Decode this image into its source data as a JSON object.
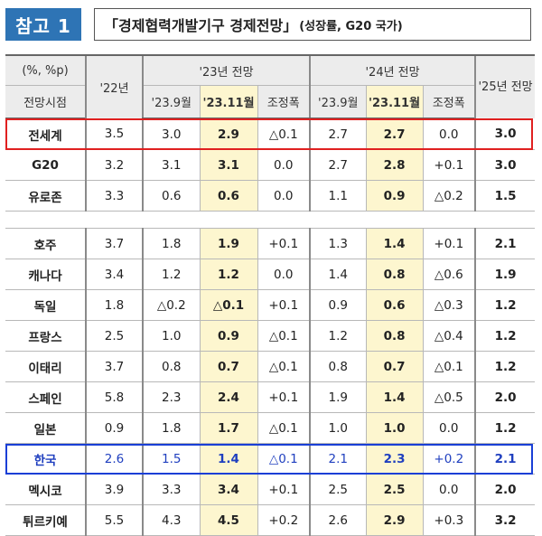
{
  "header": {
    "ref_label": "참고 1",
    "title": "「경제협력개발기구 경제전망」",
    "subtitle": "(성장률, G20 국가)"
  },
  "table": {
    "unit_label": "(%, %p)",
    "outlook_label": "전망시점",
    "col_22": "'22년",
    "group_23": "'23년 전망",
    "group_24": "'24년 전망",
    "col_25": "'25년 전망",
    "sub_sep": "'23.9월",
    "sub_nov": "'23.11월",
    "sub_adj": "조정폭",
    "rows": [
      {
        "country": "전세계",
        "y22": "3.5",
        "y23_sep": "3.0",
        "y23_nov": "2.9",
        "y23_adj": "△0.1",
        "y24_sep": "2.7",
        "y24_nov": "2.7",
        "y24_adj": "0.0",
        "y25": "3.0"
      },
      {
        "country": "G20",
        "y22": "3.2",
        "y23_sep": "3.1",
        "y23_nov": "3.1",
        "y23_adj": "0.0",
        "y24_sep": "2.7",
        "y24_nov": "2.8",
        "y24_adj": "+0.1",
        "y25": "3.0"
      },
      {
        "country": "유로존",
        "y22": "3.3",
        "y23_sep": "0.6",
        "y23_nov": "0.6",
        "y23_adj": "0.0",
        "y24_sep": "1.1",
        "y24_nov": "0.9",
        "y24_adj": "△0.2",
        "y25": "1.5"
      },
      {
        "country": "호주",
        "y22": "3.7",
        "y23_sep": "1.8",
        "y23_nov": "1.9",
        "y23_adj": "+0.1",
        "y24_sep": "1.3",
        "y24_nov": "1.4",
        "y24_adj": "+0.1",
        "y25": "2.1"
      },
      {
        "country": "캐나다",
        "y22": "3.4",
        "y23_sep": "1.2",
        "y23_nov": "1.2",
        "y23_adj": "0.0",
        "y24_sep": "1.4",
        "y24_nov": "0.8",
        "y24_adj": "△0.6",
        "y25": "1.9"
      },
      {
        "country": "독일",
        "y22": "1.8",
        "y23_sep": "△0.2",
        "y23_nov": "△0.1",
        "y23_adj": "+0.1",
        "y24_sep": "0.9",
        "y24_nov": "0.6",
        "y24_adj": "△0.3",
        "y25": "1.2"
      },
      {
        "country": "프랑스",
        "y22": "2.5",
        "y23_sep": "1.0",
        "y23_nov": "0.9",
        "y23_adj": "△0.1",
        "y24_sep": "1.2",
        "y24_nov": "0.8",
        "y24_adj": "△0.4",
        "y25": "1.2"
      },
      {
        "country": "이태리",
        "y22": "3.7",
        "y23_sep": "0.8",
        "y23_nov": "0.7",
        "y23_adj": "△0.1",
        "y24_sep": "0.8",
        "y24_nov": "0.7",
        "y24_adj": "△0.1",
        "y25": "1.2"
      },
      {
        "country": "스페인",
        "y22": "5.8",
        "y23_sep": "2.3",
        "y23_nov": "2.4",
        "y23_adj": "+0.1",
        "y24_sep": "1.9",
        "y24_nov": "1.4",
        "y24_adj": "△0.5",
        "y25": "2.0"
      },
      {
        "country": "일본",
        "y22": "0.9",
        "y23_sep": "1.8",
        "y23_nov": "1.7",
        "y23_adj": "△0.1",
        "y24_sep": "1.0",
        "y24_nov": "1.0",
        "y24_adj": "0.0",
        "y25": "1.2"
      },
      {
        "country": "한국",
        "y22": "2.6",
        "y23_sep": "1.5",
        "y23_nov": "1.4",
        "y23_adj": "△0.1",
        "y24_sep": "2.1",
        "y24_nov": "2.3",
        "y24_adj": "+0.2",
        "y25": "2.1"
      },
      {
        "country": "멕시코",
        "y22": "3.9",
        "y23_sep": "3.3",
        "y23_nov": "3.4",
        "y23_adj": "+0.1",
        "y24_sep": "2.5",
        "y24_nov": "2.5",
        "y24_adj": "0.0",
        "y25": "2.0"
      },
      {
        "country": "튀르키예",
        "y22": "5.5",
        "y23_sep": "4.3",
        "y23_nov": "4.5",
        "y23_adj": "+0.2",
        "y24_sep": "2.6",
        "y24_nov": "2.9",
        "y24_adj": "+0.3",
        "y25": "3.2"
      }
    ]
  },
  "colors": {
    "ref_box": "#2e74b5",
    "highlight_fill": "#fdf6cf",
    "world_box": "#e02020",
    "korea_box": "#1a3fd6"
  }
}
